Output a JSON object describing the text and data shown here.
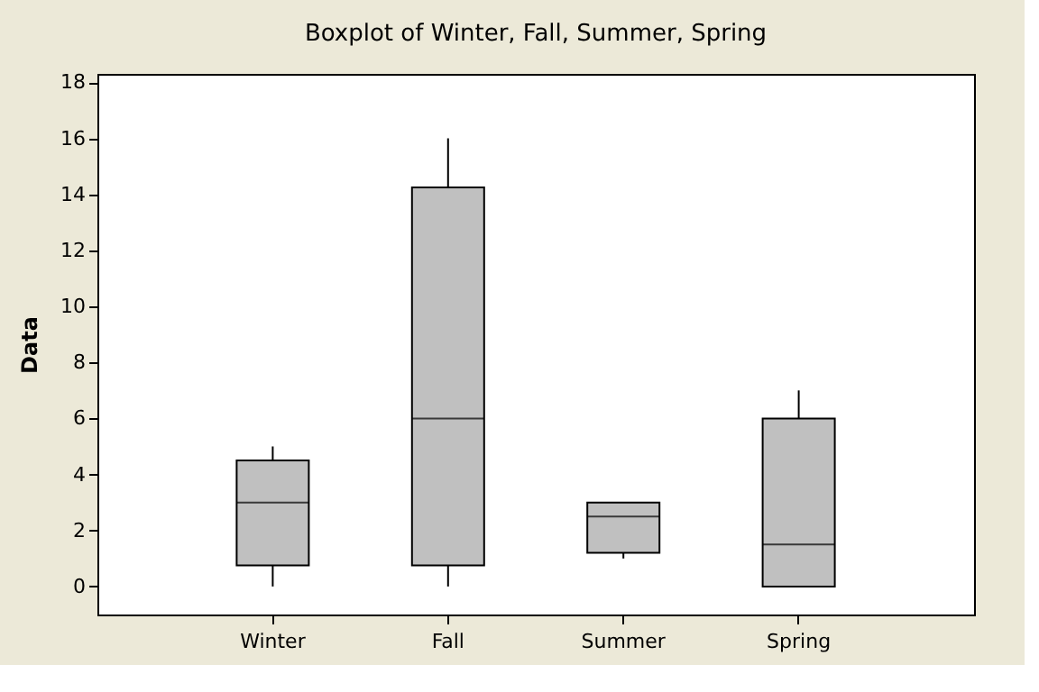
{
  "chart_data": {
    "type": "box",
    "title": "Boxplot of Winter, Fall, Summer, Spring",
    "ylabel": "Data",
    "categories": [
      "Winter",
      "Fall",
      "Summer",
      "Spring"
    ],
    "color": "#c0c0c0",
    "boxes": [
      {
        "low": 0,
        "q1": 0.75,
        "median": 3,
        "q3": 4.5,
        "high": 5
      },
      {
        "low": 0,
        "q1": 0.75,
        "median": 6,
        "q3": 14.25,
        "high": 16
      },
      {
        "low": 1,
        "q1": 1.2,
        "median": 2.5,
        "q3": 3,
        "high": 3
      },
      {
        "low": 0,
        "q1": 0,
        "median": 1.5,
        "q3": 6,
        "high": 7
      }
    ],
    "ylim": [
      -1,
      18.3
    ],
    "yticks": [
      0,
      2,
      4,
      6,
      8,
      10,
      12,
      14,
      16,
      18
    ],
    "grid": false
  }
}
